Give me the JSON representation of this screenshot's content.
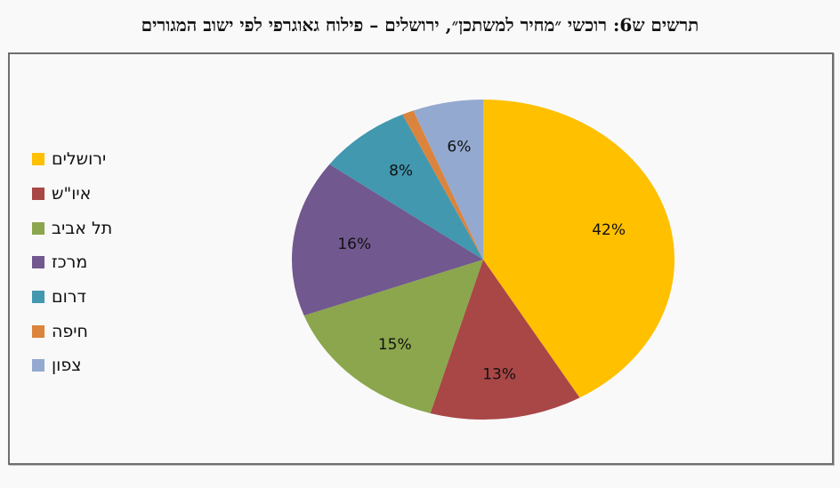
{
  "title": "תרשים ש6: רוכשי ״מחיר למשתכן״, ירושלים – פילוח גאוגרפי לפי ישוב המגורים",
  "chart_data": {
    "type": "pie",
    "title": "תרשים ש6: רוכשי ״מחיר למשתכן״, ירושלים – פילוח גאוגרפי לפי ישוב המגורים",
    "categories": [
      "ירושלים",
      "איו\"ש",
      "תל אביב",
      "מרכז",
      "דרום",
      "חיפה",
      "צפון"
    ],
    "values": [
      42,
      13,
      15,
      16,
      8,
      1,
      6
    ],
    "labels": [
      "42%",
      "13%",
      "15%",
      "16%",
      "8%",
      "",
      "6%"
    ],
    "colors": [
      "#FFC000",
      "#A94646",
      "#8BA64D",
      "#71588F",
      "#4198AF",
      "#DB843D",
      "#93A9CF"
    ],
    "legend_position": "left",
    "start_angle": "12 o'clock, clockwise"
  },
  "legend": {
    "items": [
      {
        "label": "ירושלים",
        "color": "#FFC000"
      },
      {
        "label": "איו\"ש",
        "color": "#A94646"
      },
      {
        "label": "תל אביב",
        "color": "#8BA64D"
      },
      {
        "label": "מרכז",
        "color": "#71588F"
      },
      {
        "label": "דרום",
        "color": "#4198AF"
      },
      {
        "label": "חיפה",
        "color": "#DB843D"
      },
      {
        "label": "צפון",
        "color": "#93A9CF"
      }
    ]
  }
}
